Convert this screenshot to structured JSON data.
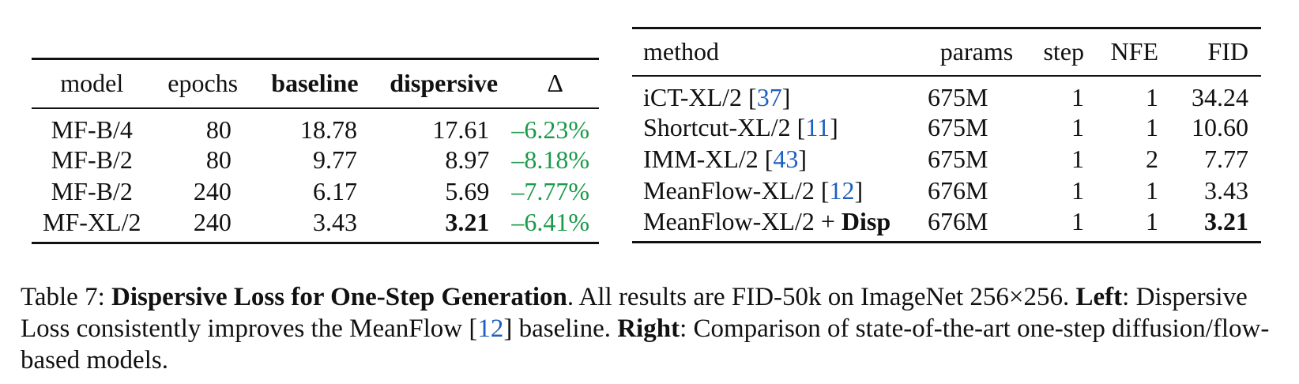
{
  "left_table": {
    "headers": {
      "model": "model",
      "epochs": "epochs",
      "baseline": "baseline",
      "dispersive": "dispersive",
      "delta": "Δ"
    },
    "rows": [
      {
        "model": "MF-B/4",
        "epochs": "80",
        "baseline": "18.78",
        "dispersive": "17.61",
        "delta": "–6.23%"
      },
      {
        "model": "MF-B/2",
        "epochs": "80",
        "baseline": "9.77",
        "dispersive": "8.97",
        "delta": "–8.18%"
      },
      {
        "model": "MF-B/2",
        "epochs": "240",
        "baseline": "6.17",
        "dispersive": "5.69",
        "delta": "–7.77%"
      },
      {
        "model": "MF-XL/2",
        "epochs": "240",
        "baseline": "3.43",
        "dispersive": "3.21",
        "delta": "–6.41%"
      }
    ]
  },
  "right_table": {
    "headers": {
      "method": "method",
      "params": "params",
      "step": "step",
      "nfe": "NFE",
      "fid": "FID"
    },
    "rows": [
      {
        "method": "iCT-XL/2 ",
        "ref": "37",
        "params": "675M",
        "step": "1",
        "nfe": "1",
        "fid": "34.24"
      },
      {
        "method": "Shortcut-XL/2 ",
        "ref": "11",
        "params": "675M",
        "step": "1",
        "nfe": "1",
        "fid": "10.60"
      },
      {
        "method": "IMM-XL/2 ",
        "ref": "43",
        "params": "675M",
        "step": "1",
        "nfe": "2",
        "fid": "7.77"
      },
      {
        "method": "MeanFlow-XL/2 ",
        "ref": "12",
        "params": "676M",
        "step": "1",
        "nfe": "1",
        "fid": "3.43"
      },
      {
        "method": "MeanFlow-XL/2 + ",
        "method_bold": "Disp",
        "params": "676M",
        "step": "1",
        "nfe": "1",
        "fid": "3.21"
      }
    ]
  },
  "caption": {
    "label": "Table 7: ",
    "title": "Dispersive Loss for One-Step Generation",
    "text1": ". All results are FID-50k on ImageNet 256×256. ",
    "left_label": "Left",
    "text2": ": Dispersive Loss consistently improves the MeanFlow [",
    "ref": "12",
    "text3": "] baseline. ",
    "right_label": "Right",
    "text4": ": Comparison of state-of-the-art one-step diffusion/flow-based models."
  },
  "colors": {
    "delta_green": "#1a9a4a",
    "ref_blue": "#1f5fbf"
  }
}
